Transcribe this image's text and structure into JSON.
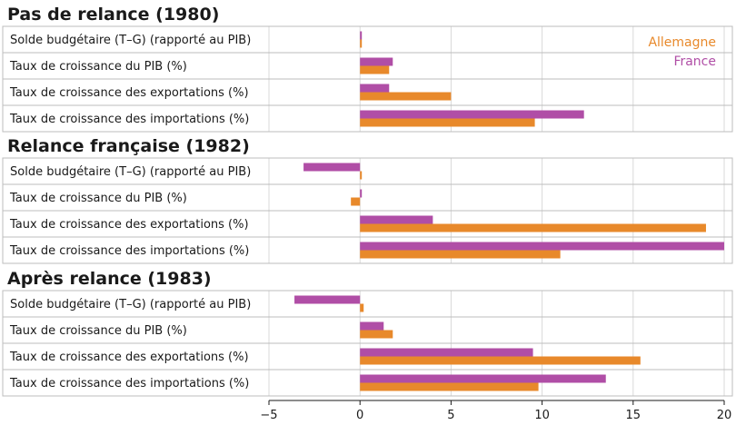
{
  "chart_data": {
    "type": "bar",
    "orientation": "horizontal",
    "xlim": [
      -5,
      20
    ],
    "xticks": [
      -5,
      0,
      5,
      10,
      15,
      20
    ],
    "xtick_labels": [
      "−5",
      "0",
      "5",
      "10",
      "15",
      "20"
    ],
    "grid": true,
    "legend_position": "top-right",
    "series": [
      {
        "name": "Allemagne",
        "color": "#e8892b"
      },
      {
        "name": "France",
        "color": "#b04ea6"
      }
    ],
    "groups": [
      {
        "title": "Pas de relance (1980)",
        "rows": [
          {
            "label": "Solde budgétaire (T–G) (rapporté au PIB)",
            "France": 0.1,
            "Allemagne": 0.1
          },
          {
            "label": "Taux de croissance du PIB (%)",
            "France": 1.8,
            "Allemagne": 1.6
          },
          {
            "label": "Taux de croissance des exportations (%)",
            "France": 1.6,
            "Allemagne": 5.0
          },
          {
            "label": "Taux de croissance des importations (%)",
            "France": 12.3,
            "Allemagne": 9.6
          }
        ]
      },
      {
        "title": "Relance française (1982)",
        "rows": [
          {
            "label": "Solde budgétaire (T–G) (rapporté au PIB)",
            "France": -3.1,
            "Allemagne": 0.0
          },
          {
            "label": "Taux de croissance du PIB (%)",
            "France": 0.0,
            "Allemagne": -0.5
          },
          {
            "label": "Taux de croissance des exportations (%)",
            "France": 4.0,
            "Allemagne": 19.0
          },
          {
            "label": "Taux de croissance des importations (%)",
            "France": 20.0,
            "Allemagne": 11.0
          }
        ]
      },
      {
        "title": "Après relance (1983)",
        "rows": [
          {
            "label": "Solde budgétaire (T–G) (rapporté au PIB)",
            "France": -3.6,
            "Allemagne": 0.2
          },
          {
            "label": "Taux de croissance du PIB (%)",
            "France": 1.3,
            "Allemagne": 1.8
          },
          {
            "label": "Taux de croissance des exportations (%)",
            "France": 9.5,
            "Allemagne": 15.4
          },
          {
            "label": "Taux de croissance des importations (%)",
            "France": 13.5,
            "Allemagne": 9.8
          }
        ]
      }
    ]
  }
}
